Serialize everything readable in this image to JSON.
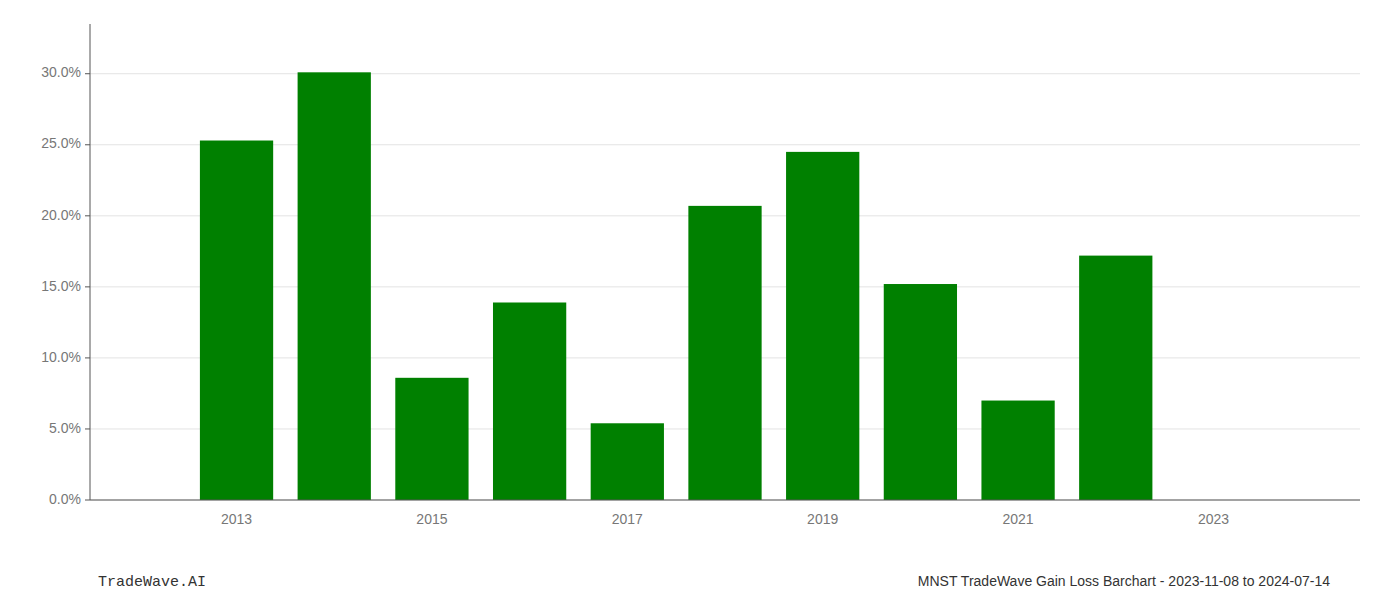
{
  "chart_data": {
    "type": "bar",
    "title": "MNST TradeWave Gain Loss Barchart - 2023-11-08 to 2024-07-14",
    "annotations": [
      "TradeWave.AI"
    ],
    "x": [
      2013,
      2014,
      2015,
      2016,
      2017,
      2018,
      2019,
      2020,
      2021,
      2022,
      2023
    ],
    "values": [
      0.253,
      0.301,
      0.086,
      0.139,
      0.054,
      0.207,
      0.245,
      0.152,
      0.07,
      0.172,
      0.0
    ],
    "color": "#008000",
    "xlim": [
      2011.5,
      2024.5
    ],
    "xticks": [
      2013,
      2015,
      2017,
      2019,
      2021,
      2023
    ],
    "ylim": [
      0,
      0.335
    ],
    "yticks": [
      {
        "value": 0.0,
        "label": "0.0%"
      },
      {
        "value": 0.05,
        "label": "5.0%"
      },
      {
        "value": 0.1,
        "label": "10.0%"
      },
      {
        "value": 0.15,
        "label": "15.0%"
      },
      {
        "value": 0.2,
        "label": "20.0%"
      },
      {
        "value": 0.25,
        "label": "25.0%"
      },
      {
        "value": 0.3,
        "label": "30.0%"
      }
    ],
    "grid": true
  }
}
